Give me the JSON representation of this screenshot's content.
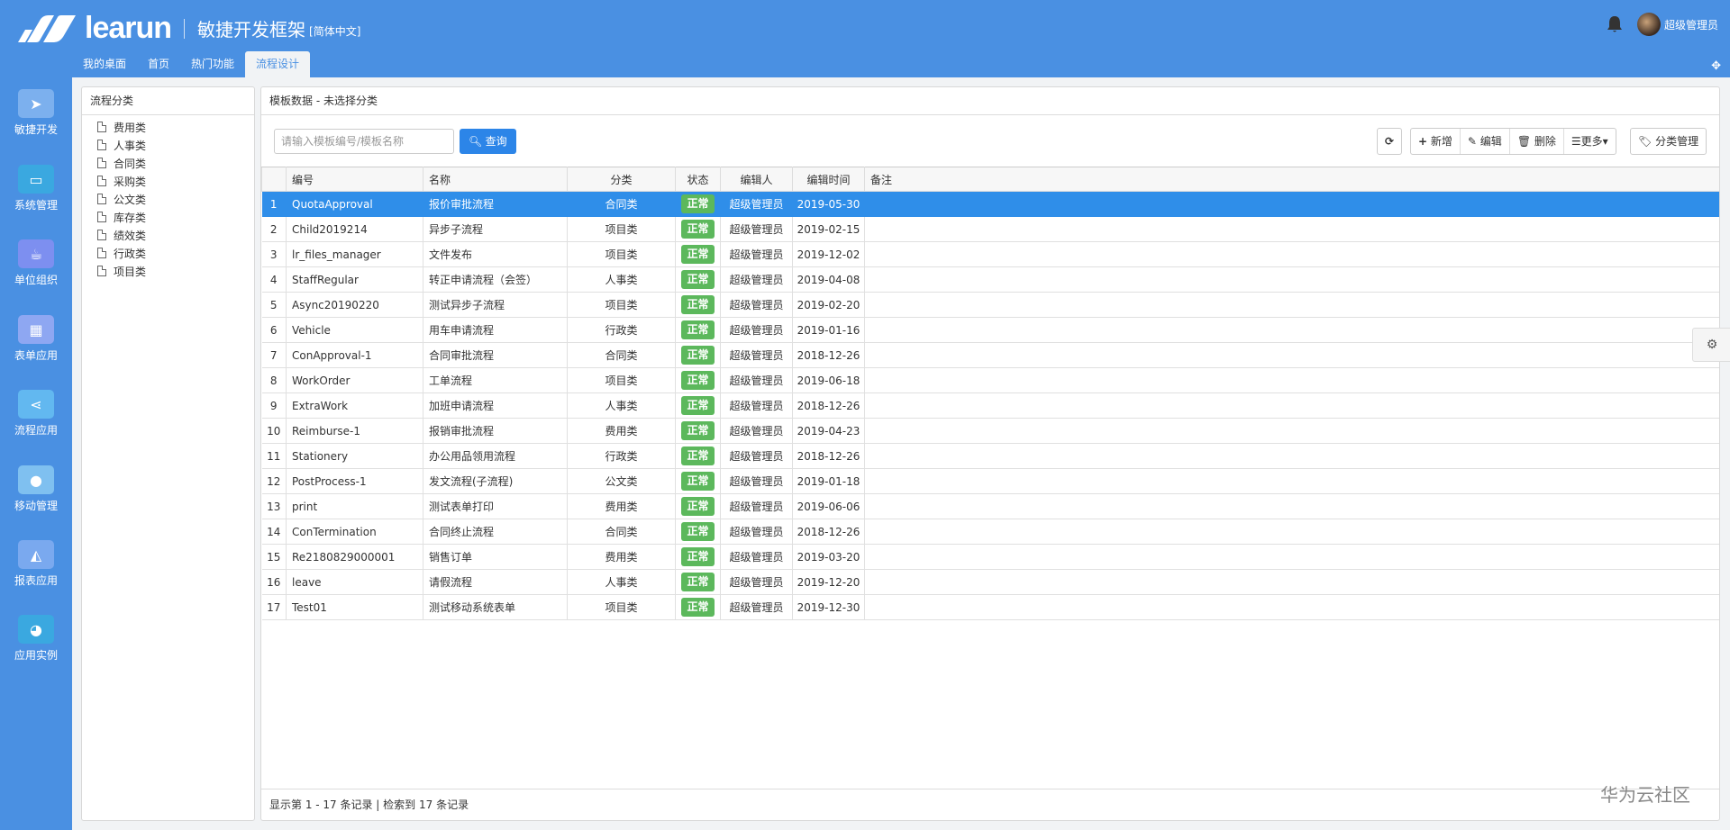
{
  "header": {
    "brand": "learun",
    "subtitle": "敏捷开发框架",
    "language": "[简体中文]",
    "user_name": "超级管理员"
  },
  "tabs": [
    {
      "label": "我的桌面"
    },
    {
      "label": "首页"
    },
    {
      "label": "热门功能"
    },
    {
      "label": "流程设计",
      "active": true
    }
  ],
  "sidebar": {
    "items": [
      {
        "label": "敏捷开发",
        "icon": "paper-plane-icon",
        "color": "#7cb0ee"
      },
      {
        "label": "系统管理",
        "icon": "monitor-icon",
        "color": "#3aa8e0"
      },
      {
        "label": "单位组织",
        "icon": "coffee-cup-icon",
        "color": "#7d8ff0"
      },
      {
        "label": "表单应用",
        "icon": "table-icon",
        "color": "#8ea7f2"
      },
      {
        "label": "流程应用",
        "icon": "share-icon",
        "color": "#62b8f0"
      },
      {
        "label": "移动管理",
        "icon": "android-icon",
        "color": "#7fc0f0"
      },
      {
        "label": "报表应用",
        "icon": "area-chart-icon",
        "color": "#7aa9ef"
      },
      {
        "label": "应用实例",
        "icon": "globe-icon",
        "color": "#3aa8e0"
      }
    ]
  },
  "category_panel": {
    "title": "流程分类",
    "items": [
      "费用类",
      "人事类",
      "合同类",
      "采购类",
      "公文类",
      "库存类",
      "绩效类",
      "行政类",
      "项目类"
    ]
  },
  "main_panel": {
    "title": "模板数据 - 未选择分类",
    "search": {
      "placeholder": "请输入模板编号/模板名称",
      "value": "",
      "button": "查询"
    },
    "toolbar": {
      "add": "新增",
      "edit": "编辑",
      "delete": "删除",
      "more": "更多",
      "category_manage": "分类管理"
    },
    "columns": [
      "",
      "编号",
      "名称",
      "分类",
      "状态",
      "编辑人",
      "编辑时间",
      "备注"
    ],
    "rows": [
      {
        "n": "1",
        "code": "QuotaApproval",
        "name": "报价审批流程",
        "cat": "合同类",
        "status": "正常",
        "editor": "超级管理员",
        "time": "2019-05-30",
        "selected": true
      },
      {
        "n": "2",
        "code": "Child2019214",
        "name": "异步子流程",
        "cat": "项目类",
        "status": "正常",
        "editor": "超级管理员",
        "time": "2019-02-15"
      },
      {
        "n": "3",
        "code": "lr_files_manager",
        "name": "文件发布",
        "cat": "项目类",
        "status": "正常",
        "editor": "超级管理员",
        "time": "2019-12-02"
      },
      {
        "n": "4",
        "code": "StaffRegular",
        "name": "转正申请流程（会签）",
        "cat": "人事类",
        "status": "正常",
        "editor": "超级管理员",
        "time": "2019-04-08"
      },
      {
        "n": "5",
        "code": "Async20190220",
        "name": "测试异步子流程",
        "cat": "项目类",
        "status": "正常",
        "editor": "超级管理员",
        "time": "2019-02-20"
      },
      {
        "n": "6",
        "code": "Vehicle",
        "name": "用车申请流程",
        "cat": "行政类",
        "status": "正常",
        "editor": "超级管理员",
        "time": "2019-01-16"
      },
      {
        "n": "7",
        "code": "ConApproval-1",
        "name": "合同审批流程",
        "cat": "合同类",
        "status": "正常",
        "editor": "超级管理员",
        "time": "2018-12-26"
      },
      {
        "n": "8",
        "code": "WorkOrder",
        "name": "工单流程",
        "cat": "项目类",
        "status": "正常",
        "editor": "超级管理员",
        "time": "2019-06-18"
      },
      {
        "n": "9",
        "code": "ExtraWork",
        "name": "加班申请流程",
        "cat": "人事类",
        "status": "正常",
        "editor": "超级管理员",
        "time": "2018-12-26"
      },
      {
        "n": "10",
        "code": "Reimburse-1",
        "name": "报销审批流程",
        "cat": "费用类",
        "status": "正常",
        "editor": "超级管理员",
        "time": "2019-04-23"
      },
      {
        "n": "11",
        "code": "Stationery",
        "name": "办公用品领用流程",
        "cat": "行政类",
        "status": "正常",
        "editor": "超级管理员",
        "time": "2018-12-26"
      },
      {
        "n": "12",
        "code": "PostProcess-1",
        "name": "发文流程(子流程)",
        "cat": "公文类",
        "status": "正常",
        "editor": "超级管理员",
        "time": "2019-01-18"
      },
      {
        "n": "13",
        "code": "print",
        "name": "测试表单打印",
        "cat": "费用类",
        "status": "正常",
        "editor": "超级管理员",
        "time": "2019-06-06"
      },
      {
        "n": "14",
        "code": "ConTermination",
        "name": "合同终止流程",
        "cat": "合同类",
        "status": "正常",
        "editor": "超级管理员",
        "time": "2018-12-26"
      },
      {
        "n": "15",
        "code": "Re2180829000001",
        "name": "销售订单",
        "cat": "费用类",
        "status": "正常",
        "editor": "超级管理员",
        "time": "2019-03-20"
      },
      {
        "n": "16",
        "code": "leave",
        "name": "请假流程",
        "cat": "人事类",
        "status": "正常",
        "editor": "超级管理员",
        "time": "2019-12-20"
      },
      {
        "n": "17",
        "code": "Test01",
        "name": "测试移动系统表单",
        "cat": "项目类",
        "status": "正常",
        "editor": "超级管理员",
        "time": "2019-12-30"
      }
    ],
    "footer": "显示第 1 - 17 条记录 | 检索到 17 条记录"
  },
  "watermark": "华为云社区",
  "colors": {
    "header": "#4a90e2",
    "primary": "#2c85e8",
    "selected_row": "#2f8ee9",
    "status_ok": "#5cb85c"
  }
}
